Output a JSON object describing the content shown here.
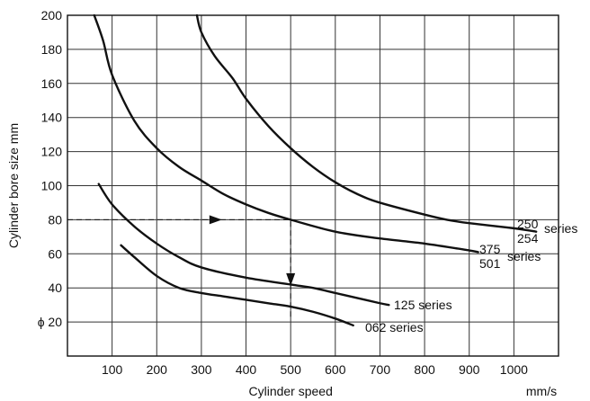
{
  "chart_data": {
    "type": "line",
    "xlabel": "Cylinder speed",
    "xunit": "mm/s",
    "ylabel": "Cylinder bore size  mm",
    "xlim": [
      0,
      1100
    ],
    "ylim": [
      0,
      200
    ],
    "grid": true,
    "x_ticks": [
      100,
      200,
      300,
      400,
      500,
      600,
      700,
      800,
      900,
      1000
    ],
    "y_ticks": [
      {
        "value": 20,
        "label": "ϕ 20"
      },
      {
        "value": 40,
        "label": "40"
      },
      {
        "value": 60,
        "label": "60"
      },
      {
        "value": 80,
        "label": "80"
      },
      {
        "value": 100,
        "label": "100"
      },
      {
        "value": 120,
        "label": "120"
      },
      {
        "value": 140,
        "label": "140"
      },
      {
        "value": 160,
        "label": "160"
      },
      {
        "value": 180,
        "label": "180"
      },
      {
        "value": 200,
        "label": "200"
      }
    ],
    "series": [
      {
        "labels": [
          "375",
          "501",
          "series"
        ],
        "points": [
          [
            60,
            200
          ],
          [
            80,
            185
          ],
          [
            100,
            165
          ],
          [
            150,
            138
          ],
          [
            200,
            122
          ],
          [
            250,
            111
          ],
          [
            300,
            103
          ],
          [
            350,
            95
          ],
          [
            400,
            89
          ],
          [
            450,
            84
          ],
          [
            500,
            80
          ],
          [
            600,
            73
          ],
          [
            700,
            69
          ],
          [
            800,
            66
          ],
          [
            900,
            62
          ],
          [
            920,
            61
          ]
        ]
      },
      {
        "labels": [
          "250",
          "254",
          "series"
        ],
        "points": [
          [
            290,
            200
          ],
          [
            300,
            190
          ],
          [
            330,
            176
          ],
          [
            370,
            163
          ],
          [
            400,
            151
          ],
          [
            450,
            135
          ],
          [
            500,
            122
          ],
          [
            550,
            111
          ],
          [
            600,
            102
          ],
          [
            650,
            95
          ],
          [
            700,
            90
          ],
          [
            800,
            83
          ],
          [
            850,
            80
          ],
          [
            900,
            78
          ],
          [
            1000,
            75
          ],
          [
            1050,
            73
          ]
        ]
      },
      {
        "labels": [
          "125 series"
        ],
        "points": [
          [
            70,
            101
          ],
          [
            100,
            89
          ],
          [
            150,
            76
          ],
          [
            200,
            66
          ],
          [
            250,
            58
          ],
          [
            300,
            52
          ],
          [
            400,
            46
          ],
          [
            500,
            42
          ],
          [
            550,
            40
          ],
          [
            600,
            37
          ],
          [
            650,
            34
          ],
          [
            700,
            31
          ],
          [
            720,
            30
          ]
        ]
      },
      {
        "labels": [
          "062 series"
        ],
        "points": [
          [
            120,
            65
          ],
          [
            150,
            58
          ],
          [
            200,
            47
          ],
          [
            250,
            40
          ],
          [
            300,
            37
          ],
          [
            350,
            35
          ],
          [
            400,
            33
          ],
          [
            450,
            31
          ],
          [
            500,
            29
          ],
          [
            550,
            26
          ],
          [
            600,
            22
          ],
          [
            640,
            18
          ]
        ]
      }
    ],
    "annotations": {
      "example_path": [
        [
          0,
          80
        ],
        [
          500,
          80
        ],
        [
          500,
          23
        ]
      ],
      "arrows": [
        {
          "at": [
            330,
            80
          ],
          "dir": "right"
        },
        {
          "at": [
            500,
            46
          ],
          "dir": "down"
        }
      ]
    }
  }
}
